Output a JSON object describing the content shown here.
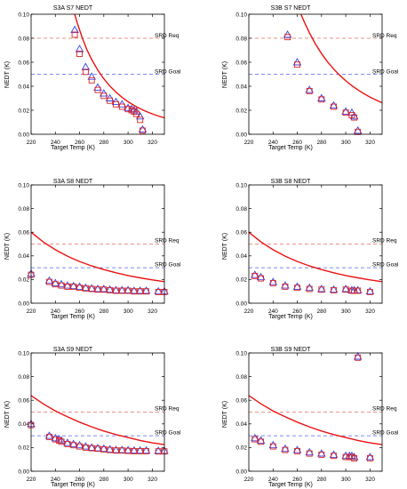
{
  "colors": {
    "curve": "#ee1111",
    "req_line": "#e07060",
    "goal_line": "#5566ee",
    "marker_red": "#dd2222",
    "marker_blue": "#3344ee",
    "axis": "#000000"
  },
  "chart_data": [
    {
      "type": "scatter",
      "title": "S3A S7 NEDT",
      "xlabel": "Target Temp (K)",
      "ylabel": "NEDT (K)",
      "xlim": [
        220,
        330
      ],
      "ylim": [
        0,
        0.1
      ],
      "xticks": [
        "220",
        "240",
        "260",
        "280",
        "300",
        "320"
      ],
      "yticks": [
        "0.00",
        "0.02",
        "0.04",
        "0.06",
        "0.08",
        "0.10"
      ],
      "ref_lines": [
        {
          "label": "SRD Req",
          "value": 0.08,
          "style": "red-dashed"
        },
        {
          "label": "SRD Goal",
          "value": 0.05,
          "style": "blue-dashed"
        }
      ],
      "curve": {
        "x": [
          256,
          258,
          262,
          266,
          270,
          275,
          280,
          285,
          290,
          295,
          300,
          305,
          310,
          315,
          320,
          325,
          330
        ],
        "y": [
          0.1,
          0.0931,
          0.0808,
          0.0706,
          0.0622,
          0.0535,
          0.0462,
          0.0402,
          0.0351,
          0.0308,
          0.0271,
          0.024,
          0.0213,
          0.019,
          0.017,
          0.0152,
          0.0137
        ]
      },
      "series": [
        {
          "marker": "triangle",
          "x": [
            256,
            260,
            265,
            270,
            275,
            280,
            285,
            290,
            295,
            300,
            303,
            305,
            307,
            310,
            312
          ],
          "y": [
            0.087,
            0.071,
            0.056,
            0.048,
            0.039,
            0.034,
            0.03,
            0.027,
            0.025,
            0.022,
            0.021,
            0.02,
            0.019,
            0.015,
            0.004
          ]
        },
        {
          "marker": "square",
          "x": [
            256,
            260,
            265,
            270,
            275,
            280,
            285,
            290,
            295,
            300,
            303,
            305,
            307,
            310,
            312
          ],
          "y": [
            0.083,
            0.067,
            0.052,
            0.045,
            0.037,
            0.032,
            0.028,
            0.025,
            0.023,
            0.021,
            0.02,
            0.019,
            0.017,
            0.012,
            0.003
          ]
        }
      ]
    },
    {
      "type": "scatter",
      "title": "S3B S7 NEDT",
      "xlabel": "Target Temp (K)",
      "ylabel": "NEDT (K)",
      "xlim": [
        220,
        330
      ],
      "ylim": [
        0,
        0.1
      ],
      "xticks": [
        "220",
        "240",
        "260",
        "280",
        "300",
        "320"
      ],
      "yticks": [
        "0.00",
        "0.02",
        "0.04",
        "0.06",
        "0.08",
        "0.10"
      ],
      "ref_lines": [
        {
          "label": "SRD Req",
          "value": 0.08,
          "style": "red-dashed"
        },
        {
          "label": "SRD Goal",
          "value": 0.05,
          "style": "blue-dashed"
        }
      ],
      "curve": {
        "x": [
          263,
          266,
          270,
          275,
          280,
          285,
          290,
          295,
          300,
          305,
          310,
          315,
          320,
          325,
          330
        ],
        "y": [
          0.1,
          0.0931,
          0.0845,
          0.0752,
          0.0672,
          0.0603,
          0.0543,
          0.0491,
          0.0445,
          0.0405,
          0.037,
          0.0338,
          0.031,
          0.0285,
          0.0262
        ]
      },
      "series": [
        {
          "marker": "triangle",
          "x": [
            252,
            260,
            270,
            280,
            290,
            300,
            305,
            307,
            310
          ],
          "y": [
            0.083,
            0.06,
            0.037,
            0.03,
            0.024,
            0.019,
            0.018,
            0.015,
            0.003
          ]
        },
        {
          "marker": "square",
          "x": [
            252,
            260,
            270,
            280,
            290,
            300,
            305,
            307,
            310
          ],
          "y": [
            0.081,
            0.058,
            0.036,
            0.029,
            0.023,
            0.018,
            0.016,
            0.014,
            0.002
          ]
        }
      ]
    },
    {
      "type": "scatter",
      "title": "S3A S8 NEDT",
      "xlabel": "Target Temp (K)",
      "ylabel": "NEDT (K)",
      "xlim": [
        220,
        330
      ],
      "ylim": [
        0,
        0.1
      ],
      "xticks": [
        "220",
        "240",
        "260",
        "280",
        "300",
        "320"
      ],
      "yticks": [
        "0.00",
        "0.02",
        "0.04",
        "0.06",
        "0.08",
        "0.10"
      ],
      "ref_lines": [
        {
          "label": "SRD Req",
          "value": 0.05,
          "style": "red-dashed"
        },
        {
          "label": "SRD Goal",
          "value": 0.03,
          "style": "blue-dashed"
        }
      ],
      "curve": {
        "x": [
          220,
          230,
          240,
          250,
          260,
          270,
          280,
          290,
          300,
          310,
          320,
          330
        ],
        "y": [
          0.06,
          0.0518,
          0.0452,
          0.0398,
          0.0353,
          0.0315,
          0.0284,
          0.0257,
          0.0234,
          0.0214,
          0.0197,
          0.0182
        ]
      },
      "series": [
        {
          "marker": "triangle",
          "x": [
            220,
            235,
            240,
            245,
            250,
            255,
            260,
            265,
            270,
            275,
            280,
            285,
            290,
            295,
            300,
            305,
            310,
            315,
            325,
            330
          ],
          "y": [
            0.025,
            0.019,
            0.017,
            0.016,
            0.015,
            0.0145,
            0.014,
            0.013,
            0.0125,
            0.012,
            0.012,
            0.0115,
            0.011,
            0.011,
            0.011,
            0.0105,
            0.0105,
            0.0105,
            0.01,
            0.01
          ]
        },
        {
          "marker": "square",
          "x": [
            220,
            235,
            240,
            245,
            250,
            255,
            260,
            265,
            270,
            275,
            280,
            285,
            290,
            295,
            300,
            305,
            310,
            315,
            325,
            330
          ],
          "y": [
            0.024,
            0.018,
            0.016,
            0.015,
            0.014,
            0.014,
            0.013,
            0.0125,
            0.012,
            0.0115,
            0.0115,
            0.011,
            0.0105,
            0.0105,
            0.0105,
            0.01,
            0.01,
            0.01,
            0.0095,
            0.0095
          ]
        }
      ]
    },
    {
      "type": "scatter",
      "title": "S3B S8 NEDT",
      "xlabel": "Target Temp (K)",
      "ylabel": "NEDT (K)",
      "xlim": [
        220,
        330
      ],
      "ylim": [
        0,
        0.1
      ],
      "xticks": [
        "220",
        "240",
        "260",
        "280",
        "300",
        "320"
      ],
      "yticks": [
        "0.00",
        "0.02",
        "0.04",
        "0.06",
        "0.08",
        "0.10"
      ],
      "ref_lines": [
        {
          "label": "SRD Req",
          "value": 0.05,
          "style": "red-dashed"
        },
        {
          "label": "SRD Goal",
          "value": 0.03,
          "style": "blue-dashed"
        }
      ],
      "curve": {
        "x": [
          220,
          230,
          240,
          250,
          260,
          270,
          280,
          290,
          300,
          310,
          320,
          330
        ],
        "y": [
          0.06,
          0.0518,
          0.0452,
          0.0398,
          0.0353,
          0.0315,
          0.0284,
          0.0257,
          0.0234,
          0.0214,
          0.0197,
          0.0182
        ]
      },
      "series": [
        {
          "marker": "triangle",
          "x": [
            225,
            230,
            240,
            250,
            260,
            270,
            280,
            290,
            300,
            305,
            307,
            310,
            320
          ],
          "y": [
            0.024,
            0.022,
            0.018,
            0.015,
            0.014,
            0.013,
            0.012,
            0.0115,
            0.012,
            0.011,
            0.011,
            0.011,
            0.01
          ]
        },
        {
          "marker": "square",
          "x": [
            225,
            230,
            240,
            250,
            260,
            270,
            280,
            290,
            300,
            305,
            307,
            310,
            320
          ],
          "y": [
            0.023,
            0.021,
            0.017,
            0.014,
            0.013,
            0.012,
            0.0115,
            0.011,
            0.0115,
            0.0105,
            0.0105,
            0.0105,
            0.0095
          ]
        }
      ]
    },
    {
      "type": "scatter",
      "title": "S3A S9 NEDT",
      "xlabel": "Target Temp (K)",
      "ylabel": "NEDT (K)",
      "xlim": [
        220,
        330
      ],
      "ylim": [
        0,
        0.1
      ],
      "xticks": [
        "220",
        "240",
        "260",
        "280",
        "300",
        "320"
      ],
      "yticks": [
        "0.00",
        "0.02",
        "0.04",
        "0.06",
        "0.08",
        "0.10"
      ],
      "ref_lines": [
        {
          "label": "SRD Req",
          "value": 0.05,
          "style": "red-dashed"
        },
        {
          "label": "SRD Goal",
          "value": 0.03,
          "style": "blue-dashed"
        }
      ],
      "curve": {
        "x": [
          220,
          230,
          240,
          250,
          260,
          270,
          280,
          290,
          300,
          310,
          320,
          330
        ],
        "y": [
          0.064,
          0.057,
          0.051,
          0.046,
          0.0415,
          0.0375,
          0.034,
          0.031,
          0.0285,
          0.026,
          0.024,
          0.0225
        ]
      },
      "series": [
        {
          "marker": "triangle",
          "x": [
            220,
            235,
            240,
            243,
            245,
            250,
            255,
            260,
            265,
            270,
            275,
            280,
            285,
            290,
            295,
            300,
            305,
            310,
            315,
            325,
            330
          ],
          "y": [
            0.04,
            0.03,
            0.028,
            0.027,
            0.026,
            0.024,
            0.023,
            0.022,
            0.021,
            0.02,
            0.0195,
            0.019,
            0.0185,
            0.018,
            0.018,
            0.0178,
            0.0176,
            0.0175,
            0.0175,
            0.0173,
            0.0172
          ]
        },
        {
          "marker": "square",
          "x": [
            220,
            235,
            240,
            243,
            245,
            250,
            255,
            260,
            265,
            270,
            275,
            280,
            285,
            290,
            295,
            300,
            305,
            310,
            315,
            325,
            330
          ],
          "y": [
            0.039,
            0.029,
            0.027,
            0.026,
            0.025,
            0.023,
            0.022,
            0.021,
            0.02,
            0.0195,
            0.019,
            0.0185,
            0.018,
            0.0175,
            0.0175,
            0.0172,
            0.017,
            0.017,
            0.017,
            0.0168,
            0.0168
          ]
        }
      ]
    },
    {
      "type": "scatter",
      "title": "S3B S9 NEDT",
      "xlabel": "Target Temp (K)",
      "ylabel": "NEDT (K)",
      "xlim": [
        220,
        330
      ],
      "ylim": [
        0,
        0.1
      ],
      "xticks": [
        "220",
        "240",
        "260",
        "280",
        "300",
        "320"
      ],
      "yticks": [
        "0.00",
        "0.02",
        "0.04",
        "0.06",
        "0.08",
        "0.10"
      ],
      "ref_lines": [
        {
          "label": "SRD Req",
          "value": 0.05,
          "style": "red-dashed"
        },
        {
          "label": "SRD Goal",
          "value": 0.03,
          "style": "blue-dashed"
        }
      ],
      "curve": {
        "x": [
          220,
          230,
          240,
          250,
          260,
          270,
          280,
          290,
          300,
          310,
          320,
          330
        ],
        "y": [
          0.064,
          0.057,
          0.051,
          0.046,
          0.0415,
          0.0375,
          0.034,
          0.031,
          0.0285,
          0.026,
          0.024,
          0.0225
        ]
      },
      "series": [
        {
          "marker": "triangle",
          "x": [
            225,
            230,
            240,
            250,
            260,
            270,
            280,
            290,
            300,
            303,
            305,
            307,
            310,
            320
          ],
          "y": [
            0.028,
            0.026,
            0.022,
            0.019,
            0.018,
            0.016,
            0.015,
            0.014,
            0.013,
            0.013,
            0.013,
            0.012,
            0.097,
            0.012
          ]
        },
        {
          "marker": "square",
          "x": [
            225,
            230,
            240,
            250,
            260,
            270,
            280,
            290,
            300,
            303,
            305,
            307,
            310,
            320
          ],
          "y": [
            0.027,
            0.025,
            0.021,
            0.018,
            0.017,
            0.015,
            0.014,
            0.013,
            0.012,
            0.012,
            0.012,
            0.011,
            0.096,
            0.011
          ]
        }
      ]
    }
  ]
}
